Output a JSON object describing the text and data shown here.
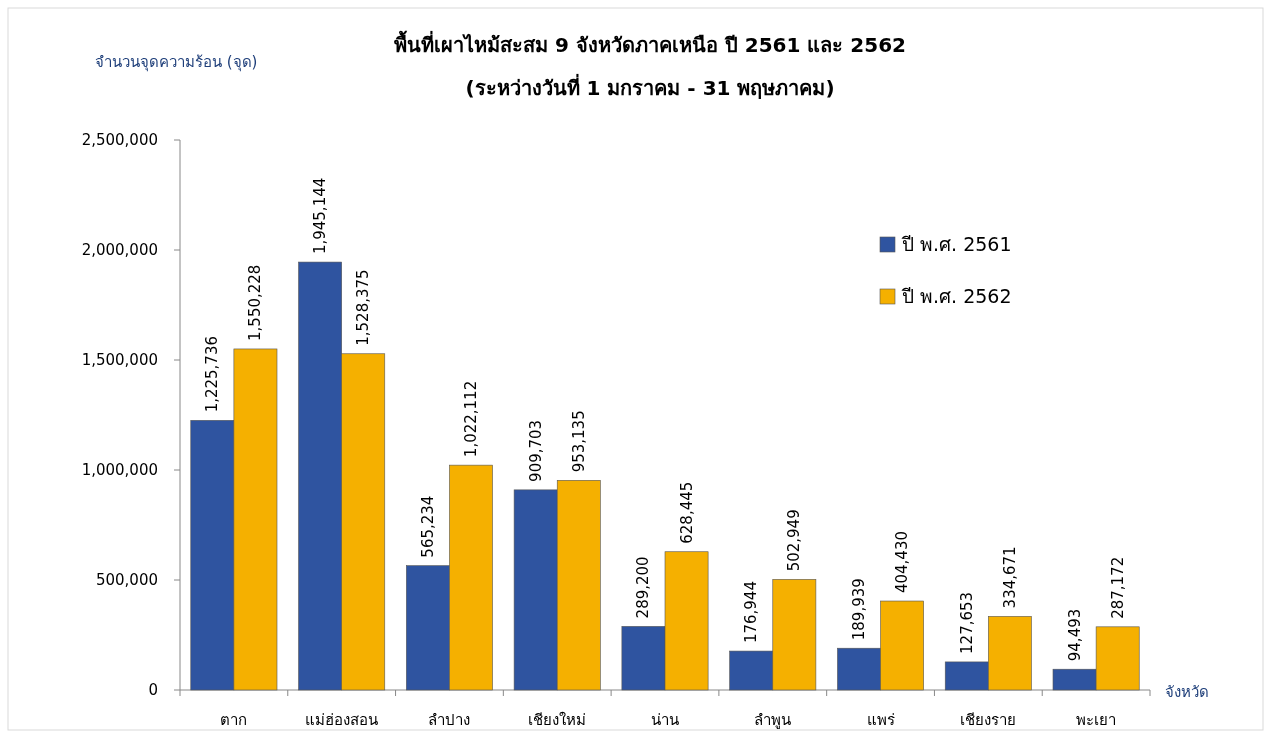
{
  "chart_data": {
    "type": "bar",
    "title": "พื้นที่เผาไหม้สะสม 9 จังหวัดภาคเหนือ ปี 2561 และ 2562",
    "subtitle": "(ระหว่างวันที่ 1 มกราคม - 31 พฤษภาคม)",
    "ylabel": "จำนวนจุดความร้อน (จุด)",
    "xlabel": "จังหวัด",
    "categories": [
      "ตาก",
      "แม่ฮ่องสอน",
      "ลำปาง",
      "เชียงใหม่",
      "น่าน",
      "ลำพูน",
      "แพร่",
      "เชียงราย",
      "พะเยา"
    ],
    "series": [
      {
        "name": "ปี พ.ศ. 2561",
        "color": "#2f54a0",
        "values": [
          1225736,
          1945144,
          565234,
          909703,
          289200,
          176944,
          189939,
          127653,
          94493
        ],
        "value_labels": [
          "1,225,736",
          "1,945,144",
          "565,234",
          "909,703",
          "289,200",
          "176,944",
          "189,939",
          "127,653",
          "94,493"
        ]
      },
      {
        "name": "ปี พ.ศ. 2562",
        "color": "#f5b000",
        "values": [
          1550228,
          1528375,
          1022112,
          953135,
          628445,
          502949,
          404430,
          334671,
          287172
        ],
        "value_labels": [
          "1,550,228",
          "1,528,375",
          "1,022,112",
          "953,135",
          "628,445",
          "502,949",
          "404,430",
          "334,671",
          "287,172"
        ]
      }
    ],
    "ylim": [
      0,
      2500000
    ],
    "yticks": [
      {
        "value": 0,
        "label": "0"
      },
      {
        "value": 500000,
        "label": "500,000"
      },
      {
        "value": 1000000,
        "label": "1,000,000"
      },
      {
        "value": 1500000,
        "label": "1,500,000"
      },
      {
        "value": 2000000,
        "label": "2,000,000"
      },
      {
        "value": 2500000,
        "label": "2,500,000"
      }
    ],
    "grid": false,
    "legend": "top right"
  }
}
